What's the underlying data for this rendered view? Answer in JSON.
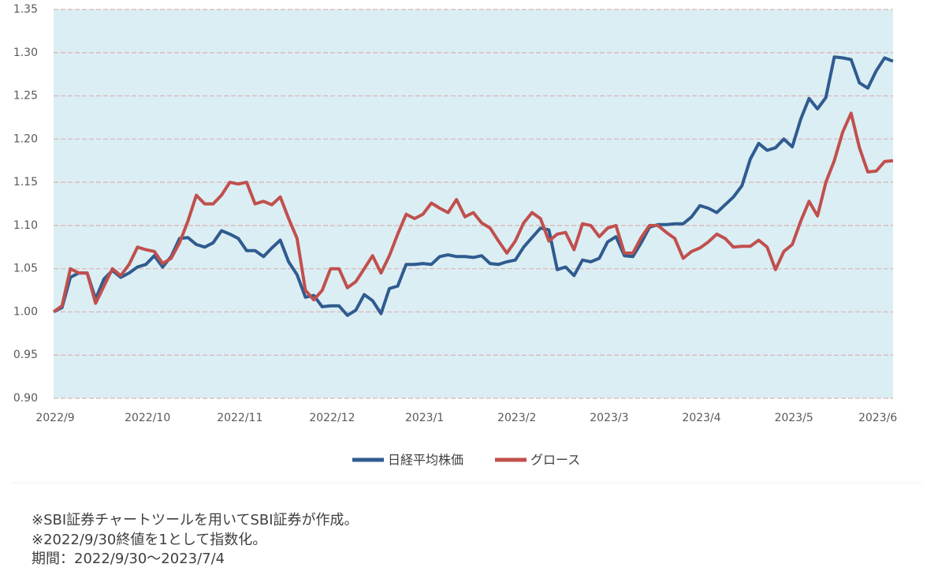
{
  "chart_data": {
    "type": "line",
    "categories": [
      "2022/9",
      null,
      null,
      null,
      null,
      null,
      null,
      null,
      null,
      null,
      null,
      "2022/10",
      null,
      null,
      null,
      null,
      null,
      null,
      null,
      null,
      null,
      null,
      "2022/11",
      null,
      null,
      null,
      null,
      null,
      null,
      null,
      null,
      null,
      null,
      "2022/12",
      null,
      null,
      null,
      null,
      null,
      null,
      null,
      null,
      null,
      null,
      "2023/1",
      null,
      null,
      null,
      null,
      null,
      null,
      null,
      null,
      null,
      null,
      "2023/2",
      null,
      null,
      null,
      null,
      null,
      null,
      null,
      null,
      null,
      null,
      "2023/3",
      null,
      null,
      null,
      null,
      null,
      null,
      null,
      null,
      null,
      null,
      "2023/4",
      null,
      null,
      null,
      null,
      null,
      null,
      null,
      null,
      null,
      null,
      "2023/5",
      null,
      null,
      null,
      null,
      null,
      null,
      null,
      null,
      null,
      "2023/6",
      null,
      null
    ],
    "series": [
      {
        "name": "日経平均株価",
        "color": "#2f5b8f",
        "values": [
          1.0,
          1.005,
          1.04,
          1.045,
          1.045,
          1.015,
          1.038,
          1.048,
          1.04,
          1.045,
          1.052,
          1.055,
          1.065,
          1.052,
          1.064,
          1.085,
          1.086,
          1.078,
          1.075,
          1.08,
          1.094,
          1.09,
          1.085,
          1.071,
          1.071,
          1.064,
          1.074,
          1.083,
          1.058,
          1.043,
          1.017,
          1.019,
          1.006,
          1.007,
          1.007,
          0.996,
          1.002,
          1.02,
          1.013,
          0.998,
          1.027,
          1.03,
          1.055,
          1.055,
          1.056,
          1.055,
          1.064,
          1.066,
          1.064,
          1.064,
          1.063,
          1.065,
          1.056,
          1.055,
          1.058,
          1.06,
          1.075,
          1.086,
          1.097,
          1.095,
          1.049,
          1.052,
          1.042,
          1.06,
          1.058,
          1.062,
          1.081,
          1.087,
          1.065,
          1.064,
          1.08,
          1.098,
          1.101,
          1.101,
          1.102,
          1.102,
          1.11,
          1.123,
          1.12,
          1.115,
          1.124,
          1.133,
          1.146,
          1.177,
          1.195,
          1.187,
          1.19,
          1.2,
          1.191,
          1.223,
          1.247,
          1.235,
          1.248,
          1.295,
          1.294,
          1.292,
          1.265,
          1.259,
          1.279,
          1.294,
          1.29
        ]
      },
      {
        "name": "グロース",
        "color": "#c0504d",
        "values": [
          1.0,
          1.007,
          1.05,
          1.045,
          1.045,
          1.01,
          1.03,
          1.05,
          1.042,
          1.055,
          1.075,
          1.072,
          1.07,
          1.056,
          1.062,
          1.08,
          1.105,
          1.135,
          1.125,
          1.125,
          1.135,
          1.15,
          1.148,
          1.15,
          1.125,
          1.128,
          1.124,
          1.133,
          1.108,
          1.085,
          1.025,
          1.014,
          1.025,
          1.05,
          1.05,
          1.028,
          1.035,
          1.05,
          1.065,
          1.045,
          1.065,
          1.09,
          1.113,
          1.108,
          1.113,
          1.126,
          1.12,
          1.115,
          1.13,
          1.11,
          1.115,
          1.103,
          1.097,
          1.082,
          1.068,
          1.082,
          1.103,
          1.115,
          1.108,
          1.082,
          1.09,
          1.092,
          1.072,
          1.102,
          1.1,
          1.087,
          1.097,
          1.1,
          1.068,
          1.068,
          1.086,
          1.1,
          1.1,
          1.092,
          1.085,
          1.062,
          1.07,
          1.074,
          1.081,
          1.09,
          1.085,
          1.075,
          1.076,
          1.076,
          1.083,
          1.075,
          1.049,
          1.07,
          1.078,
          1.105,
          1.128,
          1.111,
          1.15,
          1.175,
          1.208,
          1.23,
          1.19,
          1.162,
          1.163,
          1.174,
          1.175
        ]
      }
    ],
    "ylim": [
      0.9,
      1.35
    ],
    "yticks": [
      {
        "value": 0.9,
        "label": "0.90"
      },
      0.95,
      {
        "value": 1.0,
        "label": "1.00"
      },
      1.05,
      {
        "value": 1.1,
        "label": "1.10"
      },
      1.15,
      {
        "value": 1.2,
        "label": "1.20"
      },
      1.25,
      {
        "value": 1.3,
        "label": "1.30"
      },
      1.35
    ],
    "grid": true,
    "legend": "bottom",
    "notes": [
      "※SBI証券チャートツールを用いてSBI証券が作成。",
      "※2022/9/30終値を1として指数化。",
      "期間：2022/9/30～2023/7/4"
    ]
  }
}
